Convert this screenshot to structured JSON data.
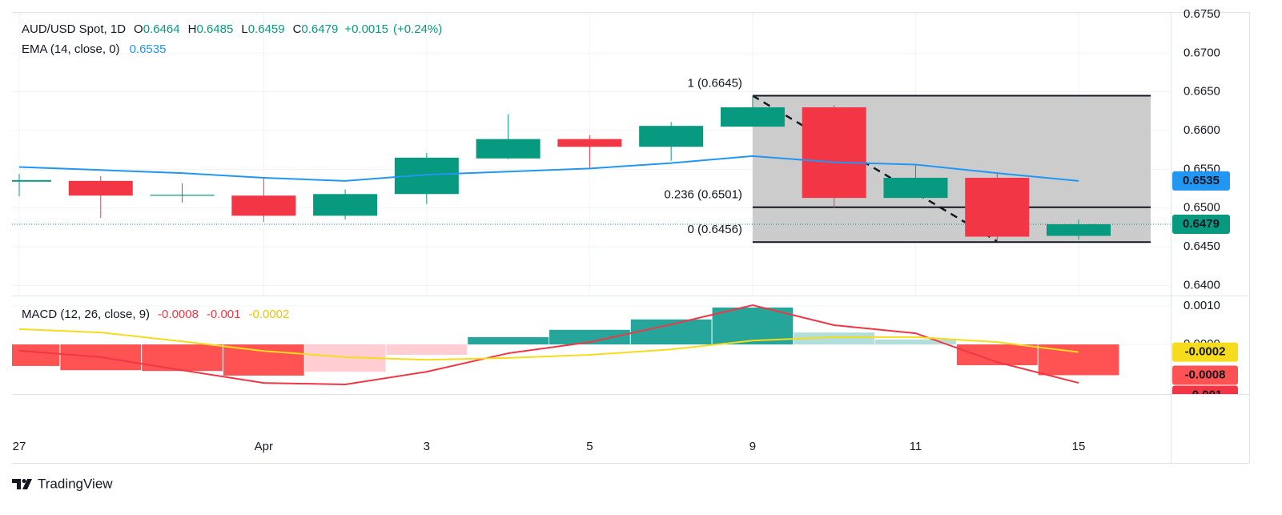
{
  "branding": "TradingView",
  "chart_data": [
    {
      "type": "candlestick",
      "title": "AUD/USD Spot, 1D",
      "ohlc_keys": [
        "O",
        "H",
        "L",
        "C"
      ],
      "change": "+0.0015",
      "change_pct": "(+0.24%)",
      "categories": [
        "27",
        null,
        null,
        "Apr",
        null,
        "3",
        null,
        "5",
        null,
        "9",
        null,
        "11",
        null,
        "15"
      ],
      "open": [
        0.6534,
        0.6535,
        0.6517,
        0.6516,
        0.649,
        0.6518,
        0.6564,
        0.6589,
        0.6579,
        0.6605,
        0.663,
        0.6513,
        0.6539,
        0.6464
      ],
      "high": [
        0.6544,
        0.6541,
        0.6532,
        0.6538,
        0.6524,
        0.6571,
        0.6621,
        0.6594,
        0.6611,
        0.6645,
        0.6633,
        0.6556,
        0.6545,
        0.6485
      ],
      "low": [
        0.6515,
        0.6487,
        0.6507,
        0.6482,
        0.6485,
        0.6505,
        0.6563,
        0.6551,
        0.6561,
        0.6605,
        0.65,
        0.6513,
        0.6457,
        0.6459
      ],
      "close": [
        0.6536,
        0.6516,
        0.6517,
        0.649,
        0.6518,
        0.6565,
        0.6589,
        0.6579,
        0.6606,
        0.663,
        0.6513,
        0.6539,
        0.6463,
        0.6479
      ],
      "up_color": "#089981",
      "down_color": "#f23645",
      "series": [
        {
          "name": "EMA (14, close, 0)",
          "color": "#2196f3",
          "values": [
            0.6553,
            0.6549,
            0.6545,
            0.6539,
            0.6535,
            0.6543,
            0.6547,
            0.6551,
            0.6558,
            0.6567,
            0.6559,
            0.6556,
            0.6545,
            0.6535
          ]
        }
      ],
      "fib_levels": [
        {
          "value": 0.6645,
          "label": "1 (0.6645)"
        },
        {
          "value": 0.6501,
          "label": "0.236 (0.6501)"
        },
        {
          "value": 0.6456,
          "label": "0 (0.6456)"
        }
      ],
      "ylim": [
        0.6388,
        0.6752
      ],
      "yticks": [
        {
          "value": 0.64,
          "label": "0.6400"
        },
        {
          "value": 0.645,
          "label": "0.6450"
        },
        {
          "value": 0.65,
          "label": "0.6500"
        },
        {
          "value": 0.655,
          "label": "0.6550"
        },
        {
          "value": 0.66,
          "label": "0.6600"
        },
        {
          "value": 0.665,
          "label": "0.6650"
        },
        {
          "value": 0.67,
          "label": "0.6700"
        },
        {
          "value": 0.675,
          "label": "0.6750"
        }
      ],
      "grid": true
    },
    {
      "type": "macd",
      "title": "MACD (12, 26, close, 9)",
      "histogram": {
        "values": [
          -0.00056,
          -0.00067,
          -0.00069,
          -0.00081,
          -0.00071,
          -0.00027,
          0.00019,
          0.00038,
          0.00065,
          0.00096,
          0.00031,
          0.00013,
          -0.00054,
          -0.0008
        ],
        "colors": [
          "#ff5252",
          "#ff5252",
          "#ff5252",
          "#ff5252",
          "#ffcdd2",
          "#ffcdd2",
          "#26a69a",
          "#26a69a",
          "#26a69a",
          "#26a69a",
          "#b2dfdb",
          "#b2dfdb",
          "#ff5252",
          "#ff5252"
        ]
      },
      "series": [
        {
          "color": "#f23645",
          "values": [
            -0.00016,
            -0.00033,
            -0.00067,
            -0.001,
            -0.00104,
            -0.00071,
            -0.00023,
            6e-05,
            0.00052,
            0.00102,
            0.0005,
            0.00029,
            -0.00046,
            -0.001
          ]
        },
        {
          "color": "#f5dc1c",
          "values": [
            0.0004,
            0.00031,
            8e-05,
            -0.00017,
            -0.00033,
            -0.0004,
            -0.00035,
            -0.00027,
            -0.00013,
            0.0001,
            0.00019,
            0.00019,
            6e-05,
            -0.0002
          ]
        }
      ],
      "ylim": [
        -0.00129,
        0.00125
      ],
      "yticks": [
        {
          "value": 0,
          "label": "0.0000"
        },
        {
          "value": 0.001,
          "label": "0.0010"
        }
      ],
      "grid": true
    }
  ]
}
